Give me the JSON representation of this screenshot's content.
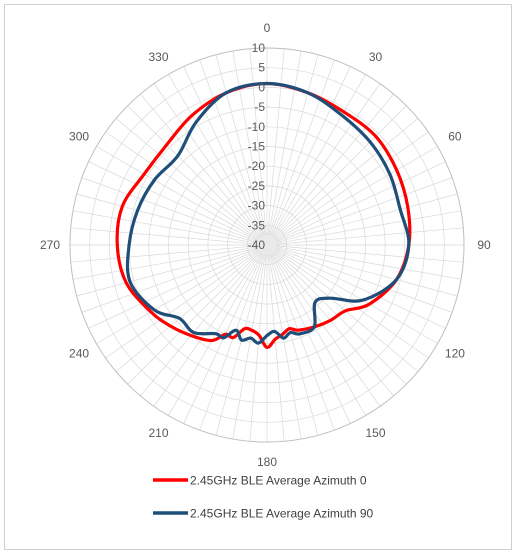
{
  "chart_data": {
    "type": "line",
    "subtype": "polar",
    "title": "",
    "radial_axis": {
      "min": -40,
      "max": 10,
      "step": 5,
      "tick_labels": [
        "10",
        "5",
        "0",
        "-5",
        "-10",
        "-15",
        "-20",
        "-25",
        "-30",
        "-35",
        "-40"
      ]
    },
    "angular_axis": {
      "step": 30,
      "direction": "clockwise",
      "zero": "top",
      "tick_labels": [
        "0",
        "30",
        "60",
        "90",
        "120",
        "150",
        "180",
        "210",
        "240",
        "270",
        "300",
        "330"
      ]
    },
    "grid": true,
    "legend": {
      "position": "bottom"
    },
    "angles": [
      0,
      15,
      30,
      45,
      60,
      75,
      90,
      105,
      120,
      130,
      140,
      150,
      160,
      165,
      170,
      175,
      180,
      185,
      190,
      195,
      200,
      205,
      210,
      220,
      230,
      240,
      255,
      270,
      285,
      300,
      315,
      330,
      345
    ],
    "series": [
      {
        "name": "2.45GHz BLE Average Azimuth 0",
        "color": "#ff0000",
        "values": [
          1,
          0,
          -1,
          -1,
          -2,
          -3,
          -4,
          -6,
          -10,
          -14,
          -15,
          -16,
          -17,
          -18,
          -17,
          -16,
          -14,
          -17,
          -18,
          -18,
          -15,
          -15,
          -12,
          -10,
          -8,
          -6,
          -3,
          -2,
          -2,
          -4,
          -4,
          -2,
          0
        ]
      },
      {
        "name": "2.45GHz BLE Average Azimuth 90",
        "color": "#1f4e79",
        "values": [
          1,
          0,
          -2,
          -3,
          -4,
          -5,
          -4,
          -6,
          -12,
          -19,
          -21,
          -16,
          -16,
          -17,
          -16,
          -18,
          -17,
          -15,
          -16,
          -15,
          -17,
          -14,
          -14,
          -11,
          -11,
          -7,
          -4,
          -5,
          -6,
          -7,
          -8,
          -4,
          0
        ]
      }
    ]
  }
}
